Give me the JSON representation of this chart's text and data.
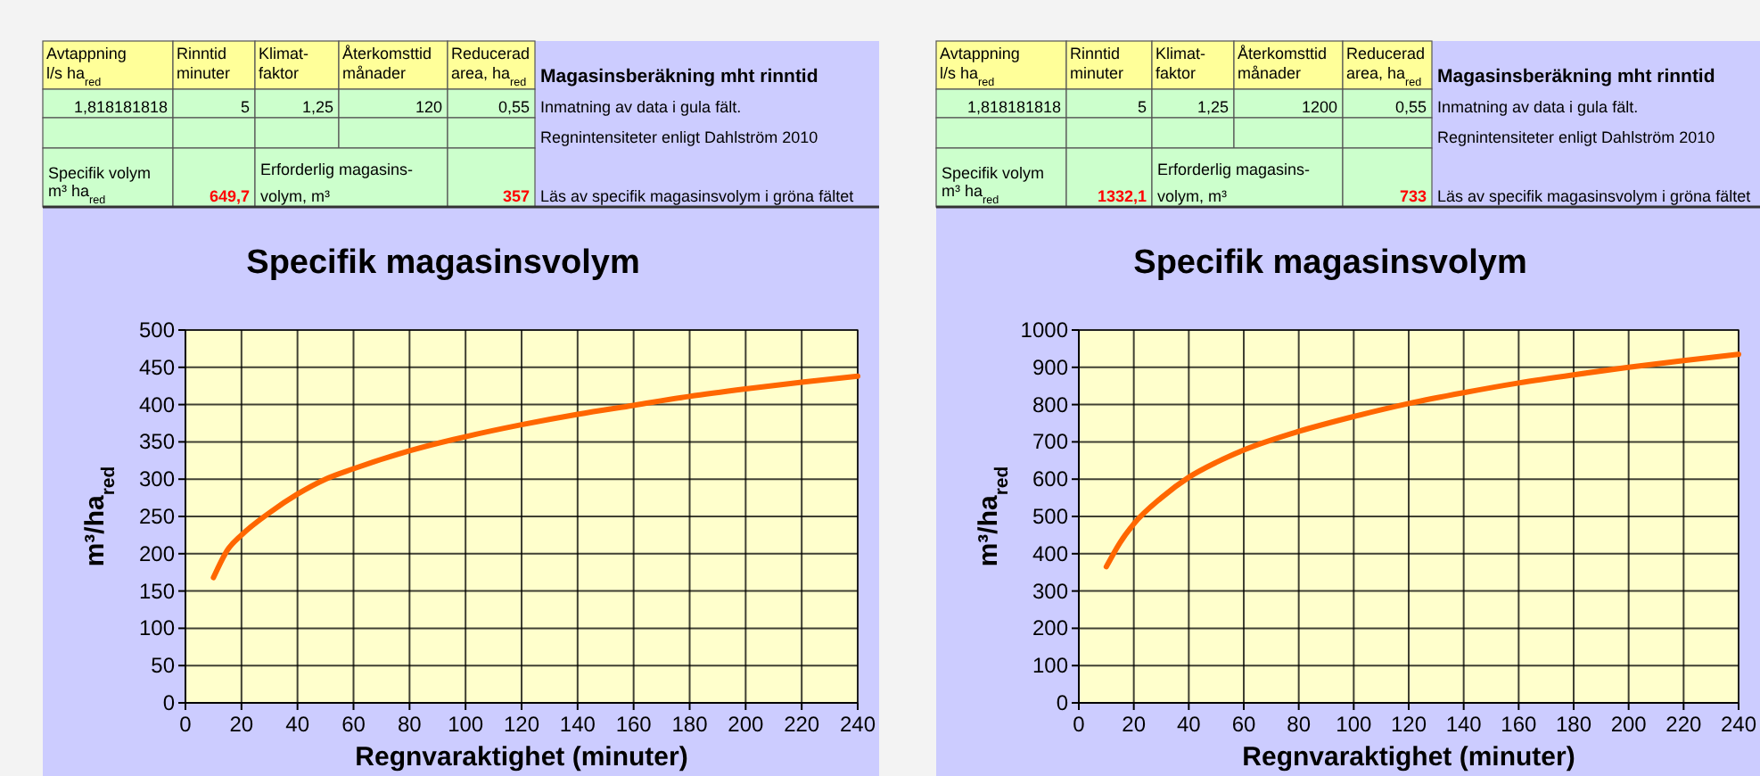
{
  "chart_data": [
    {
      "type": "other",
      "annotations": [
        "Avtappning",
        "l/s ha$_{red}$",
        "Rinntid",
        "minuter",
        "Klimat-",
        "faktor",
        "Återkomsttid",
        "månader",
        "Reducerad",
        "area, ha$_{red}$",
        "Magasinsberäkning mht rinntid",
        "1,818181818",
        "5",
        "1,25",
        "120",
        "0,55",
        "Inmatning av data i gula fält.",
        "Regnintensiteter enligt Dahlström 2010",
        "Specifik volym",
        "m³ ha$_{red}$",
        "649,7",
        "Erforderlig magasins-",
        "volym, m³",
        "357",
        "Läs av specifik magasinsvolym i gröna fältet"
      ]
    },
    {
      "type": "line",
      "title": "Specifik magasinsvolym",
      "xlabel": "Regnvaraktighet (minuter)",
      "ylabel": "m³/ha$_{red}$",
      "x": [
        10,
        15,
        20,
        30,
        40,
        50,
        60,
        80,
        100,
        120,
        140,
        160,
        180,
        200,
        220,
        240
      ],
      "series": [
        {
          "color": "#ff6600",
          "values": [
            168,
            205,
            225,
            255,
            280,
            300,
            314,
            338,
            357,
            373,
            387,
            399,
            411,
            421,
            430,
            438
          ]
        }
      ],
      "xlim": [
        0,
        240
      ],
      "xticks": [
        0,
        20,
        40,
        60,
        80,
        100,
        120,
        140,
        160,
        180,
        200,
        220,
        240
      ],
      "ylim": [
        0,
        500
      ],
      "yticks": [
        0,
        50,
        100,
        150,
        200,
        250,
        300,
        350,
        400,
        450,
        500
      ],
      "grid": true,
      "marker": "none",
      "line_style": "solid"
    },
    {
      "type": "other",
      "annotations": [
        "Avtappning",
        "l/s ha$_{red}$",
        "Rinntid",
        "minuter",
        "Klimat-",
        "faktor",
        "Återkomsttid",
        "månader",
        "Reducerad",
        "area, ha$_{red}$",
        "Magasinsberäkning mht rinntid",
        "1,818181818",
        "5",
        "1,25",
        "1200",
        "0,55",
        "Inmatning av data i gula fält.",
        "Regnintensiteter enligt Dahlström 2010",
        "Specifik volym",
        "m³ ha$_{red}$",
        "1332,1",
        "Erforderlig magasins-",
        "volym, m³",
        "733",
        "Läs av specifik magasinsvolym i gröna fältet"
      ]
    },
    {
      "type": "line",
      "title": "Specifik magasinsvolym",
      "xlabel": "Regnvaraktighet (minuter)",
      "ylabel": "m³/ha$_{red}$",
      "x": [
        10,
        15,
        20,
        30,
        40,
        50,
        60,
        80,
        100,
        120,
        140,
        160,
        180,
        200,
        220,
        240
      ],
      "series": [
        {
          "color": "#ff6600",
          "values": [
            365,
            430,
            480,
            550,
            605,
            645,
            678,
            728,
            768,
            803,
            832,
            858,
            880,
            900,
            918,
            935
          ]
        }
      ],
      "xlim": [
        0,
        240
      ],
      "xticks": [
        0,
        20,
        40,
        60,
        80,
        100,
        120,
        140,
        160,
        180,
        200,
        220,
        240
      ],
      "ylim": [
        0,
        1000
      ],
      "yticks": [
        0,
        100,
        200,
        300,
        400,
        500,
        600,
        700,
        800,
        900,
        1000
      ],
      "grid": true,
      "marker": "none",
      "line_style": "solid"
    }
  ]
}
